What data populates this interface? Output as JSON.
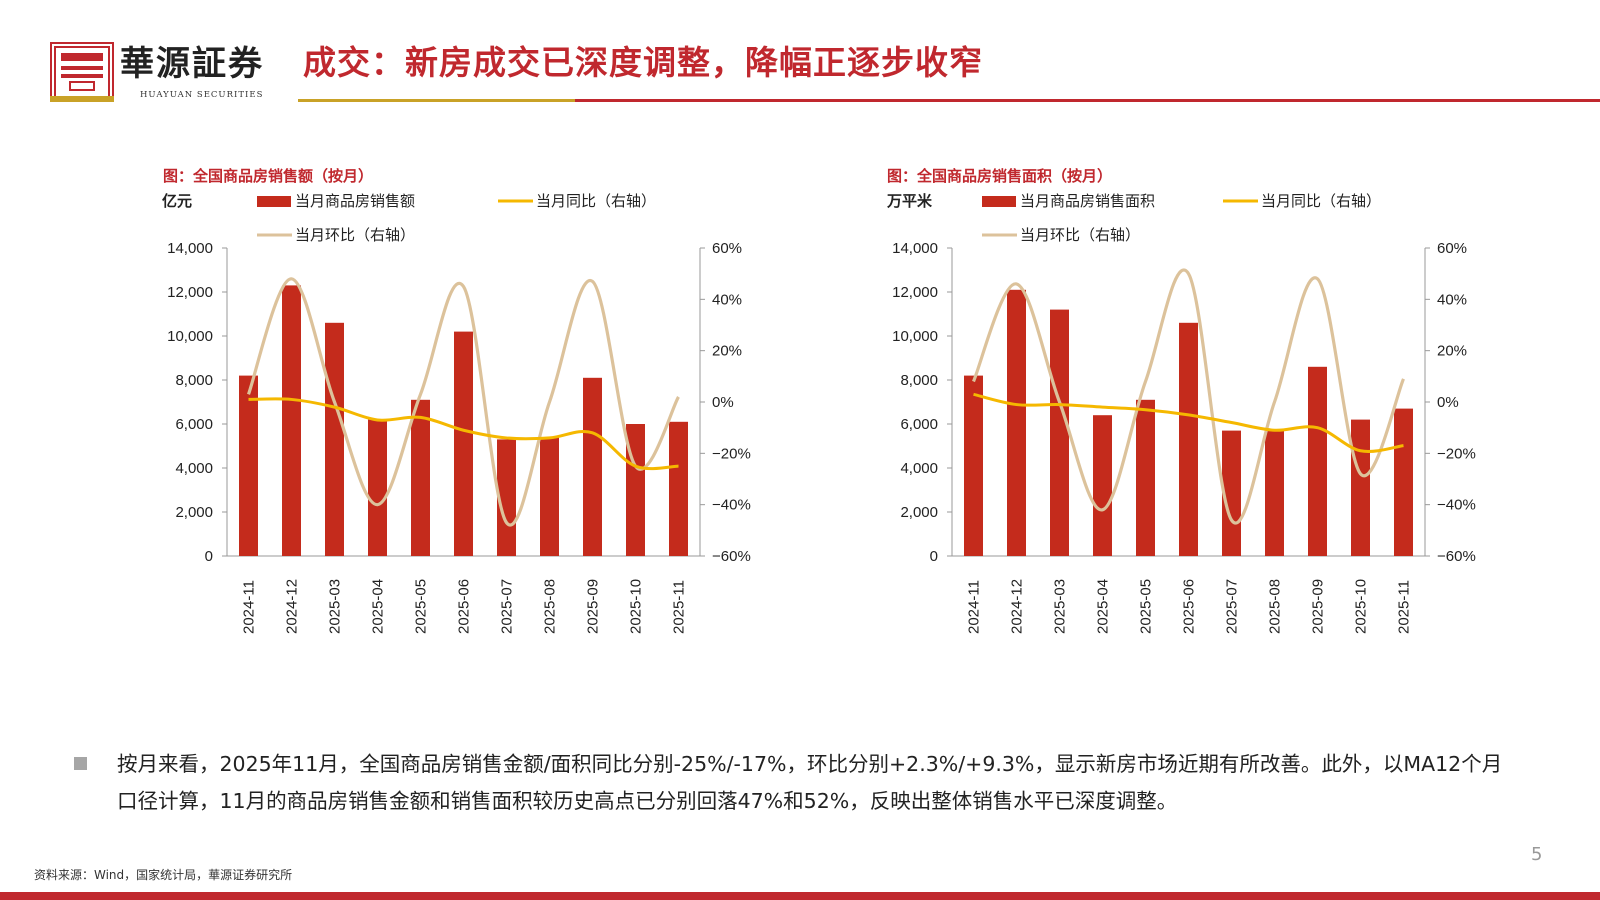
{
  "header": {
    "brand_name": "華源証券",
    "brand_sub": "HUAYUAN SECURITIES",
    "title": "成交：新房成交已深度调整，降幅正逐步收窄"
  },
  "colors": {
    "brand_red": "#c0282e",
    "gold": "#c9a227",
    "bar_red": "#c42b1c",
    "yoy_line": "#f5b800",
    "mom_line": "#dcc29b"
  },
  "chart_data": [
    {
      "type": "bar",
      "caption": "图：全国商品房销售额（按月）",
      "unit_label": "亿元",
      "categories": [
        "2024-11",
        "2024-12",
        "2025-03",
        "2025-04",
        "2025-05",
        "2025-06",
        "2025-07",
        "2025-08",
        "2025-09",
        "2025-10",
        "2025-11"
      ],
      "bars": {
        "name": "当月商品房销售额",
        "values": [
          8200,
          12300,
          10600,
          6200,
          7100,
          10200,
          5300,
          5400,
          8100,
          6000,
          6100
        ]
      },
      "lines": [
        {
          "name": "当月同比（右轴）",
          "values": [
            1,
            1,
            -2,
            -7,
            -6,
            -11,
            -14,
            -14,
            -12,
            -25,
            -25
          ]
        },
        {
          "name": "当月环比（右轴）",
          "values": [
            3,
            48,
            0,
            -40,
            3,
            45,
            -47,
            0,
            47,
            -25,
            2
          ]
        }
      ],
      "legend": {
        "bar": "当月商品房销售额",
        "yoy": "当月同比（右轴）",
        "mom": "当月环比（右轴）"
      },
      "ylim": [
        0,
        14000
      ],
      "y2lim": [
        -60,
        60
      ],
      "yticks": [
        "0",
        "2,000",
        "4,000",
        "6,000",
        "8,000",
        "10,000",
        "12,000",
        "14,000"
      ],
      "y2ticks": [
        "−60%",
        "−40%",
        "−20%",
        "0%",
        "20%",
        "40%",
        "60%"
      ]
    },
    {
      "type": "bar",
      "caption": "图：全国商品房销售面积（按月）",
      "unit_label": "万平米",
      "categories": [
        "2024-11",
        "2024-12",
        "2025-03",
        "2025-04",
        "2025-05",
        "2025-06",
        "2025-07",
        "2025-08",
        "2025-09",
        "2025-10",
        "2025-11"
      ],
      "bars": {
        "name": "当月商品房销售面积",
        "values": [
          8200,
          12100,
          11200,
          6400,
          7100,
          10600,
          5700,
          5700,
          8600,
          6200,
          6700
        ]
      },
      "lines": [
        {
          "name": "当月同比（右轴）",
          "values": [
            3,
            -1,
            -1,
            -2,
            -3,
            -5,
            -8,
            -11,
            -10,
            -19,
            -17
          ]
        },
        {
          "name": "当月环比（右轴）",
          "values": [
            8,
            46,
            0,
            -42,
            8,
            50,
            -46,
            0,
            48,
            -28,
            9
          ]
        }
      ],
      "legend": {
        "bar": "当月商品房销售面积",
        "yoy": "当月同比（右轴）",
        "mom": "当月环比（右轴）"
      },
      "ylim": [
        0,
        14000
      ],
      "y2lim": [
        -60,
        60
      ],
      "yticks": [
        "0",
        "2,000",
        "4,000",
        "6,000",
        "8,000",
        "10,000",
        "12,000",
        "14,000"
      ],
      "y2ticks": [
        "−60%",
        "−40%",
        "−20%",
        "0%",
        "20%",
        "40%",
        "60%"
      ]
    }
  ],
  "body": {
    "text": "按月来看，2025年11月，全国商品房销售金额/面积同比分别-25%/-17%，环比分别+2.3%/+9.3%，显示新房市场近期有所改善。此外，以MA12个月口径计算，11月的商品房销售金额和销售面积较历史高点已分别回落47%和52%，反映出整体销售水平已深度调整。"
  },
  "footer": {
    "source": "资料来源：Wind，国家统计局，華源证券研究所",
    "page_number": "5"
  }
}
